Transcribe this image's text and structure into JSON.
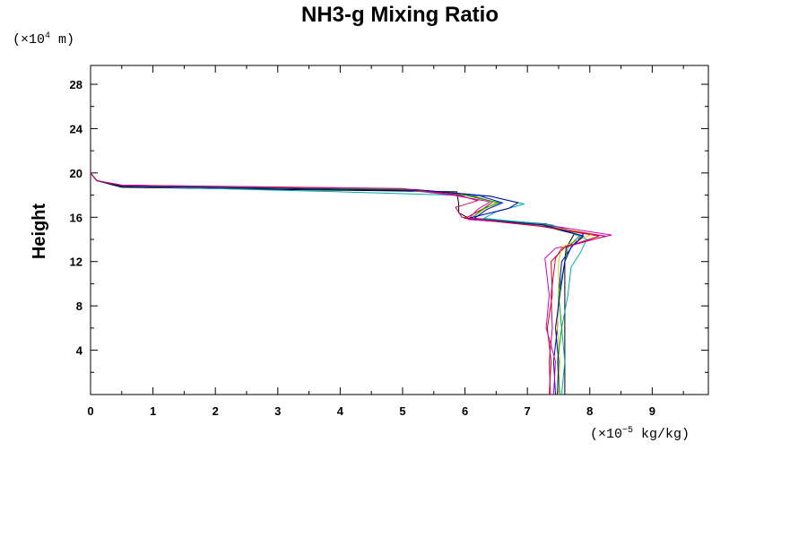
{
  "chart_data": {
    "type": "line",
    "title": "NH3-g Mixing Ratio",
    "ylabel": "Height",
    "y_unit": {
      "prefix": "(×10",
      "exp": "4",
      "suffix": " m)"
    },
    "x_unit": {
      "prefix": "(×10",
      "exp": "−5",
      "suffix": " kg/kg)"
    },
    "xlim": [
      0,
      9.9
    ],
    "ylim": [
      0,
      29.7
    ],
    "x_ticks": [
      "0",
      "1",
      "2",
      "3",
      "4",
      "5",
      "6",
      "7",
      "8",
      "9"
    ],
    "y_ticks": [
      "4",
      "8",
      "12",
      "16",
      "20",
      "24",
      "28"
    ],
    "grid": false,
    "series": [
      {
        "color": "#000000",
        "points": [
          [
            7.6,
            0
          ],
          [
            7.6,
            4
          ],
          [
            7.6,
            8
          ],
          [
            7.6,
            12
          ],
          [
            7.62,
            13.2
          ],
          [
            7.75,
            14.5
          ],
          [
            7.2,
            15.3
          ],
          [
            6.1,
            15.8
          ],
          [
            5.9,
            16.4
          ],
          [
            5.9,
            17.2
          ],
          [
            5.87,
            18.3
          ],
          [
            0.5,
            18.7
          ],
          [
            0.1,
            19.3
          ],
          [
            0,
            20
          ],
          [
            0,
            29.7
          ]
        ]
      },
      {
        "color": "#0000cc",
        "points": [
          [
            7.45,
            0
          ],
          [
            7.42,
            3
          ],
          [
            7.48,
            6
          ],
          [
            7.5,
            9
          ],
          [
            7.55,
            12
          ],
          [
            7.72,
            13.4
          ],
          [
            7.9,
            14.5
          ],
          [
            7.3,
            15.4
          ],
          [
            6.15,
            15.9
          ],
          [
            6.35,
            16.7
          ],
          [
            6.6,
            17.3
          ],
          [
            6.2,
            18
          ],
          [
            5.2,
            18.5
          ],
          [
            0.5,
            18.8
          ],
          [
            0.1,
            19.3
          ],
          [
            0,
            20
          ]
        ]
      },
      {
        "color": "#cc0000",
        "points": [
          [
            7.35,
            0
          ],
          [
            7.38,
            3
          ],
          [
            7.32,
            6
          ],
          [
            7.4,
            9
          ],
          [
            7.38,
            12
          ],
          [
            7.6,
            13.3
          ],
          [
            8.15,
            14.3
          ],
          [
            7.2,
            15.2
          ],
          [
            6.0,
            15.9
          ],
          [
            6.3,
            16.8
          ],
          [
            6.45,
            17.4
          ],
          [
            6.0,
            18.1
          ],
          [
            5.0,
            18.5
          ],
          [
            0.5,
            18.9
          ],
          [
            0.1,
            19.3
          ],
          [
            0,
            20
          ]
        ]
      },
      {
        "color": "#00aaaa",
        "points": [
          [
            7.55,
            0
          ],
          [
            7.6,
            3
          ],
          [
            7.55,
            6
          ],
          [
            7.65,
            9
          ],
          [
            7.7,
            11.5
          ],
          [
            7.85,
            12.8
          ],
          [
            7.95,
            14
          ],
          [
            7.4,
            15.3
          ],
          [
            6.3,
            15.9
          ],
          [
            6.5,
            16.5
          ],
          [
            6.95,
            17.2
          ],
          [
            6.4,
            17.9
          ],
          [
            4.0,
            18.3
          ],
          [
            0.5,
            18.8
          ],
          [
            0.1,
            19.3
          ],
          [
            0,
            20
          ]
        ]
      },
      {
        "color": "#cc00cc",
        "points": [
          [
            7.42,
            0
          ],
          [
            7.45,
            3
          ],
          [
            7.3,
            6
          ],
          [
            7.35,
            9
          ],
          [
            7.28,
            12.3
          ],
          [
            7.45,
            13.2
          ],
          [
            8.35,
            14.4
          ],
          [
            7.3,
            15.3
          ],
          [
            6.05,
            15.8
          ],
          [
            6.2,
            16.7
          ],
          [
            6.4,
            17.4
          ],
          [
            5.8,
            18
          ],
          [
            5.0,
            18.5
          ],
          [
            0.5,
            18.9
          ],
          [
            0.1,
            19.3
          ],
          [
            0,
            20
          ]
        ]
      },
      {
        "color": "#cccc00",
        "points": [
          [
            7.5,
            0
          ],
          [
            7.52,
            3
          ],
          [
            7.48,
            6
          ],
          [
            7.5,
            9
          ],
          [
            7.5,
            12
          ],
          [
            7.55,
            13.3
          ],
          [
            8.05,
            14.5
          ],
          [
            7.2,
            15.3
          ],
          [
            6.1,
            15.9
          ],
          [
            6.3,
            16.7
          ],
          [
            6.5,
            17.3
          ],
          [
            6.0,
            18
          ],
          [
            5.0,
            18.5
          ],
          [
            0.5,
            18.8
          ],
          [
            0.1,
            19.3
          ],
          [
            0,
            20
          ]
        ]
      },
      {
        "color": "#00aa00",
        "points": [
          [
            7.52,
            0
          ],
          [
            7.48,
            3
          ],
          [
            7.55,
            6
          ],
          [
            7.5,
            9
          ],
          [
            7.6,
            12
          ],
          [
            7.65,
            13.3
          ],
          [
            7.85,
            14.4
          ],
          [
            7.3,
            15.3
          ],
          [
            6.1,
            15.9
          ],
          [
            6.3,
            16.8
          ],
          [
            6.55,
            17.3
          ],
          [
            6.0,
            18
          ],
          [
            5.0,
            18.5
          ],
          [
            0.5,
            18.8
          ],
          [
            0.1,
            19.3
          ],
          [
            0,
            20
          ]
        ]
      },
      {
        "color": "#0000aa",
        "points": [
          [
            7.48,
            0
          ],
          [
            7.5,
            3
          ],
          [
            7.45,
            6
          ],
          [
            7.52,
            9
          ],
          [
            7.6,
            12
          ],
          [
            7.7,
            13.3
          ],
          [
            7.9,
            14.3
          ],
          [
            7.25,
            15.3
          ],
          [
            6.05,
            15.9
          ],
          [
            6.7,
            16.8
          ],
          [
            6.85,
            17.3
          ],
          [
            6.4,
            17.9
          ],
          [
            5.4,
            18.4
          ],
          [
            0.5,
            18.8
          ],
          [
            0.1,
            19.3
          ],
          [
            0,
            20
          ]
        ]
      },
      {
        "color": "#cc0066",
        "points": [
          [
            7.37,
            0
          ],
          [
            7.35,
            3
          ],
          [
            7.4,
            6
          ],
          [
            7.38,
            9
          ],
          [
            7.45,
            12.3
          ],
          [
            7.55,
            13.2
          ],
          [
            8.25,
            14.3
          ],
          [
            7.2,
            15.2
          ],
          [
            5.95,
            16
          ],
          [
            5.85,
            16.9
          ],
          [
            6.2,
            17.5
          ],
          [
            5.9,
            18
          ],
          [
            5.0,
            18.6
          ],
          [
            0.5,
            18.9
          ],
          [
            0.1,
            19.3
          ],
          [
            0,
            20
          ]
        ]
      }
    ]
  }
}
